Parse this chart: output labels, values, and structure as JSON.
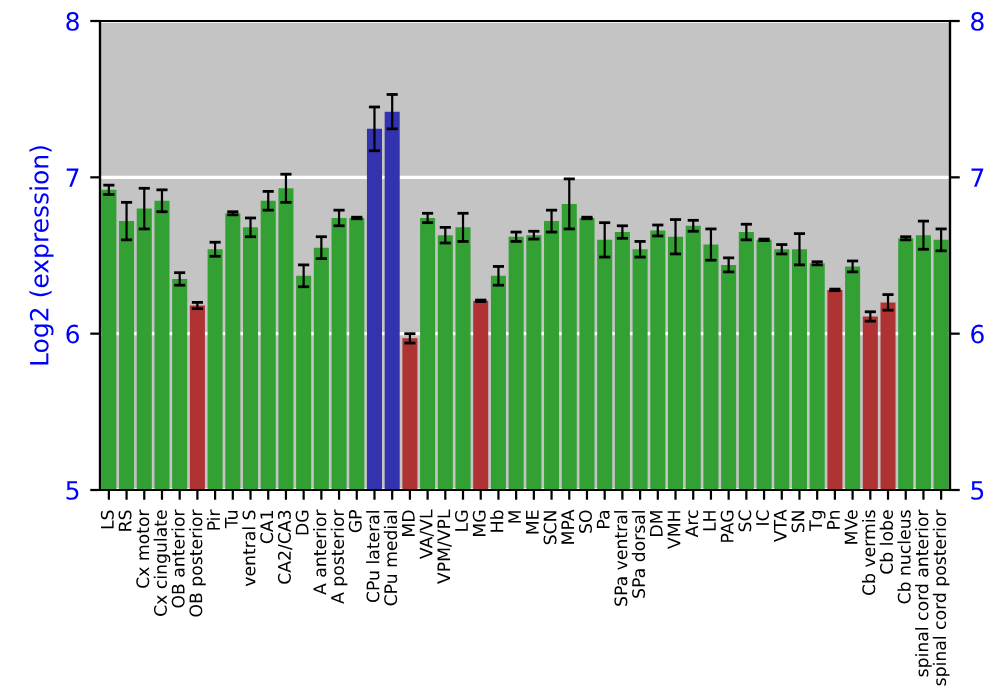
{
  "chart_data": {
    "type": "bar",
    "ylabel": "Log2 (expression)",
    "categories": [
      "LS",
      "RS",
      "Cx motor",
      "Cx cingulate",
      "OB anterior",
      "OB posterior",
      "Pir",
      "Tu",
      "ventral S",
      "CA1",
      "CA2/CA3",
      "DG",
      "A anterior",
      "A posterior",
      "GP",
      "CPu lateral",
      "CPu medial",
      "MD",
      "VA/VL",
      "VPM/VPL",
      "LG",
      "MG",
      "Hb",
      "M",
      "ME",
      "SCN",
      "MPA",
      "SO",
      "Pa",
      "SPa ventral",
      "SPa dorsal",
      "DM",
      "VMH",
      "Arc",
      "LH",
      "PAG",
      "SC",
      "IC",
      "VTA",
      "SN",
      "Tg",
      "Pn",
      "MVe",
      "Cb vermis",
      "Cb lobe",
      "Cb nucleus",
      "spinal cord anterior",
      "spinal cord posterior"
    ],
    "values": [
      6.92,
      6.72,
      6.8,
      6.85,
      6.35,
      6.18,
      6.54,
      6.77,
      6.68,
      6.85,
      6.93,
      6.37,
      6.55,
      6.74,
      6.74,
      7.31,
      7.42,
      5.97,
      6.74,
      6.63,
      6.68,
      6.21,
      6.37,
      6.62,
      6.63,
      6.72,
      6.83,
      6.74,
      6.6,
      6.65,
      6.54,
      6.66,
      6.62,
      6.69,
      6.57,
      6.44,
      6.65,
      6.6,
      6.54,
      6.54,
      6.45,
      6.28,
      6.43,
      6.11,
      6.2,
      6.61,
      6.63,
      6.6
    ],
    "errors": [
      0.03,
      0.12,
      0.13,
      0.07,
      0.04,
      0.02,
      0.045,
      0.01,
      0.06,
      0.06,
      0.09,
      0.07,
      0.07,
      0.05,
      0.005,
      0.14,
      0.11,
      0.03,
      0.03,
      0.05,
      0.09,
      0.005,
      0.06,
      0.03,
      0.025,
      0.07,
      0.16,
      0.005,
      0.11,
      0.04,
      0.05,
      0.035,
      0.11,
      0.035,
      0.1,
      0.045,
      0.05,
      0.005,
      0.03,
      0.1,
      0.01,
      0.005,
      0.035,
      0.03,
      0.05,
      0.01,
      0.09,
      0.07
    ],
    "colors": [
      "#33a033",
      "#33a033",
      "#33a033",
      "#33a033",
      "#33a033",
      "#b03333",
      "#33a033",
      "#33a033",
      "#33a033",
      "#33a033",
      "#33a033",
      "#33a033",
      "#33a033",
      "#33a033",
      "#33a033",
      "#3333b0",
      "#3333b0",
      "#b03333",
      "#33a033",
      "#33a033",
      "#33a033",
      "#b03333",
      "#33a033",
      "#33a033",
      "#33a033",
      "#33a033",
      "#33a033",
      "#33a033",
      "#33a033",
      "#33a033",
      "#33a033",
      "#33a033",
      "#33a033",
      "#33a033",
      "#33a033",
      "#33a033",
      "#33a033",
      "#33a033",
      "#33a033",
      "#33a033",
      "#33a033",
      "#b03333",
      "#33a033",
      "#b03333",
      "#b03333",
      "#33a033",
      "#33a033",
      "#33a033"
    ],
    "ylim": [
      5,
      8
    ],
    "yticks": [
      5,
      6,
      7,
      8
    ],
    "y2lim": [
      5,
      8
    ],
    "y2ticks": [
      5,
      6,
      7,
      8
    ],
    "grid": "y"
  }
}
